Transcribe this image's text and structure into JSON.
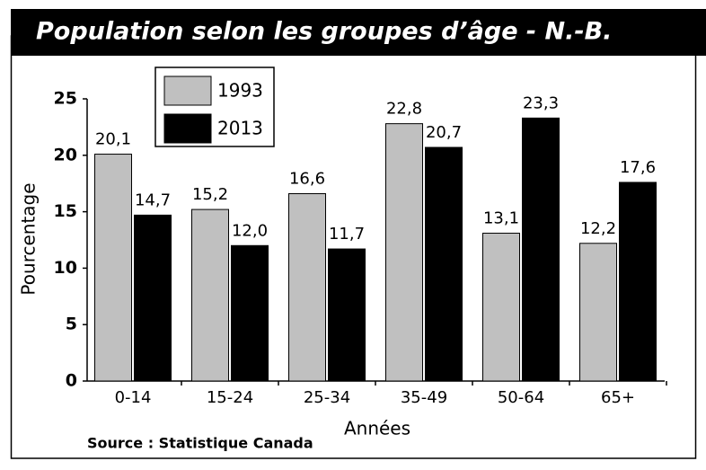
{
  "chart_data": {
    "type": "bar",
    "title": "Population selon les groupes d’âge - N.-B.",
    "x_label": "Années",
    "y_label": "Pourcentage",
    "source": "Source : Statistique Canada",
    "categories": [
      "0-14",
      "15-24",
      "25-34",
      "35-49",
      "50-64",
      "65+"
    ],
    "series": [
      {
        "name": "1993",
        "color": "#c0c0c0",
        "values": [
          20.1,
          15.2,
          16.6,
          22.8,
          13.1,
          12.2
        ],
        "value_labels": [
          "20,1",
          "15,2",
          "16,6",
          "22,8",
          "13,1",
          "12,2"
        ]
      },
      {
        "name": "2013",
        "color": "#000000",
        "values": [
          14.7,
          12.0,
          11.7,
          20.7,
          23.3,
          17.6
        ],
        "value_labels": [
          "14,7",
          "12,0",
          "11,7",
          "20,7",
          "23,3",
          "17,6"
        ]
      }
    ],
    "ylim": [
      0,
      25
    ],
    "yticks": [
      0,
      5,
      10,
      15,
      20,
      25
    ]
  }
}
